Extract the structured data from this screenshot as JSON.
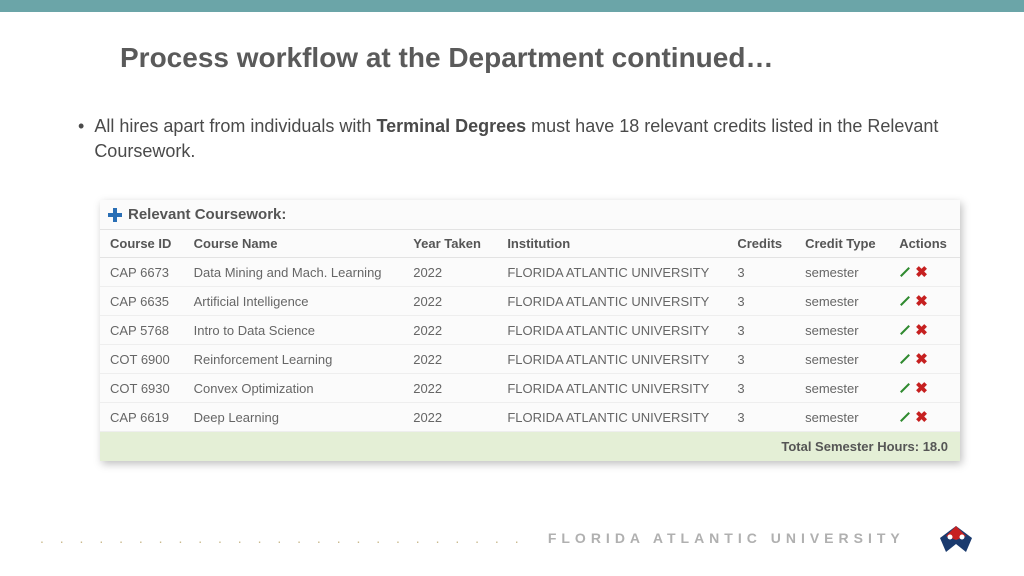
{
  "colors": {
    "top_bar": "#6ba5a8",
    "title_text": "#5a5a5a",
    "body_text": "#4a4a4a",
    "table_header_text": "#555555",
    "table_cell_text": "#666666",
    "total_row_bg": "#e4efd6",
    "plus_icon": "#2a6fb5",
    "edit_icon": "#2f8a2f",
    "delete_icon": "#c62020",
    "dots": "#c9b98c",
    "footer_text": "#b0b0b0"
  },
  "slide": {
    "title": "Process workflow at the Department continued…",
    "bullet_plain_1": "All hires apart from individuals with ",
    "bullet_bold": "Terminal Degrees",
    "bullet_plain_2": " must have 18 relevant credits listed in the Relevant Coursework."
  },
  "table": {
    "panel_title": "Relevant Coursework:",
    "columns": [
      "Course ID",
      "Course Name",
      "Year Taken",
      "Institution",
      "Credits",
      "Credit Type",
      "Actions"
    ],
    "rows": [
      {
        "id": "CAP 6673",
        "name": "Data Mining and Mach. Learning",
        "year": "2022",
        "inst": "FLORIDA ATLANTIC UNIVERSITY",
        "credits": "3",
        "type": "semester"
      },
      {
        "id": "CAP 6635",
        "name": "Artificial Intelligence",
        "year": "2022",
        "inst": "FLORIDA ATLANTIC UNIVERSITY",
        "credits": "3",
        "type": "semester"
      },
      {
        "id": "CAP 5768",
        "name": "Intro to Data Science",
        "year": "2022",
        "inst": "FLORIDA ATLANTIC UNIVERSITY",
        "credits": "3",
        "type": "semester"
      },
      {
        "id": "COT 6900",
        "name": "Reinforcement Learning",
        "year": "2022",
        "inst": "FLORIDA ATLANTIC UNIVERSITY",
        "credits": "3",
        "type": "semester"
      },
      {
        "id": "COT 6930",
        "name": "Convex Optimization",
        "year": "2022",
        "inst": "FLORIDA ATLANTIC UNIVERSITY",
        "credits": "3",
        "type": "semester"
      },
      {
        "id": "CAP 6619",
        "name": "Deep Learning",
        "year": "2022",
        "inst": "FLORIDA ATLANTIC UNIVERSITY",
        "credits": "3",
        "type": "semester"
      }
    ],
    "total_label": "Total Semester Hours: 18.0"
  },
  "footer": {
    "dots": ". . . . . . . . . . . . . . . . . . . . . . . . .",
    "text": "FLORIDA ATLANTIC UNIVERSITY"
  }
}
